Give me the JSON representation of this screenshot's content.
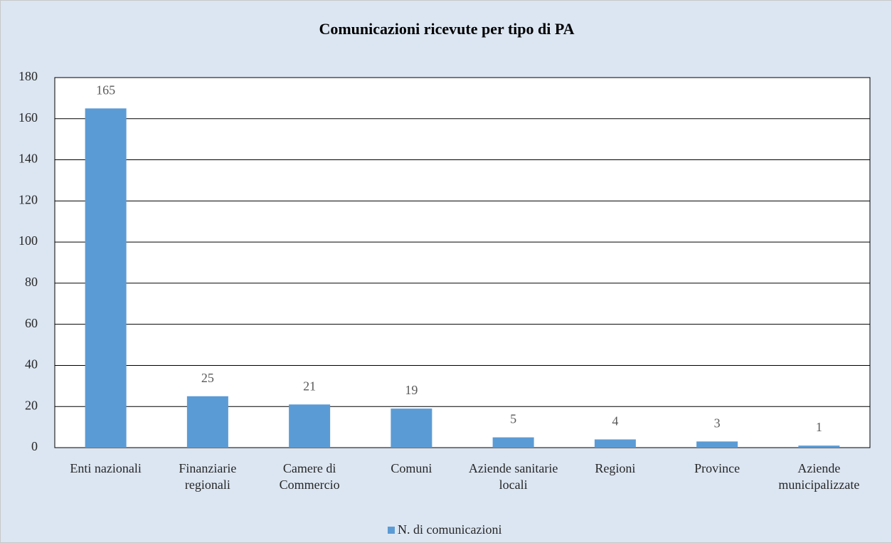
{
  "chart_data": {
    "type": "bar",
    "title": "Comunicazioni ricevute per tipo di PA",
    "categories": [
      "Enti nazionali",
      "Finanziarie regionali",
      "Camere di Commercio",
      "Comuni",
      "Aziende sanitarie locali",
      "Regioni",
      "Province",
      "Aziende municipalizzate"
    ],
    "series": [
      {
        "name": "N. di comunicazioni",
        "color": "#5b9bd5",
        "values": [
          165,
          25,
          21,
          19,
          5,
          4,
          3,
          1
        ]
      }
    ],
    "ylim": [
      0,
      180
    ],
    "yticks": [
      0,
      20,
      40,
      60,
      80,
      100,
      120,
      140,
      160,
      180
    ],
    "grid": true,
    "legend": "bottom"
  }
}
